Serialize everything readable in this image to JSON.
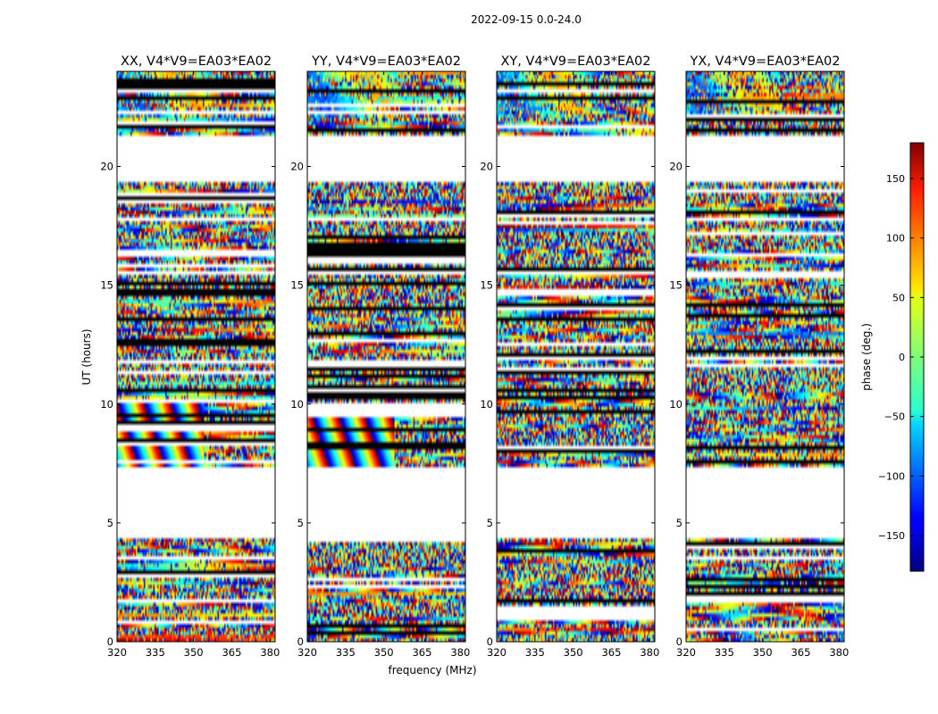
{
  "figure": {
    "suptitle": "2022-09-15 0.0-24.0"
  },
  "chart_data": {
    "type": "heatmap",
    "xlabel": "frequency (MHz)",
    "ylabel": "UT (hours)",
    "xlim": [
      320,
      382
    ],
    "ylim": [
      0,
      24
    ],
    "xticks": [
      320,
      335,
      350,
      365,
      380
    ],
    "yticks": [
      0,
      5,
      10,
      15,
      20
    ],
    "colorscale": "jet",
    "colorbar": {
      "label": "phase (deg.)",
      "range": [
        -180,
        180
      ],
      "ticks": [
        150,
        100,
        50,
        0,
        -50,
        -100,
        -150
      ],
      "tick_labels": [
        "150",
        "100",
        "50",
        "0",
        "−50",
        "−100",
        "−150"
      ]
    },
    "panels": [
      {
        "title": "XX, V4*V9=EA03*EA02"
      },
      {
        "title": "YY, V4*V9=EA03*EA02"
      },
      {
        "title": "XY, V4*V9=EA03*EA02"
      },
      {
        "title": "YX, V4*V9=EA03*EA02"
      }
    ],
    "data_gaps_hours": [
      [
        4.4,
        7.3
      ],
      [
        19.3,
        21.3
      ],
      [
        15.4,
        15.6
      ]
    ]
  }
}
